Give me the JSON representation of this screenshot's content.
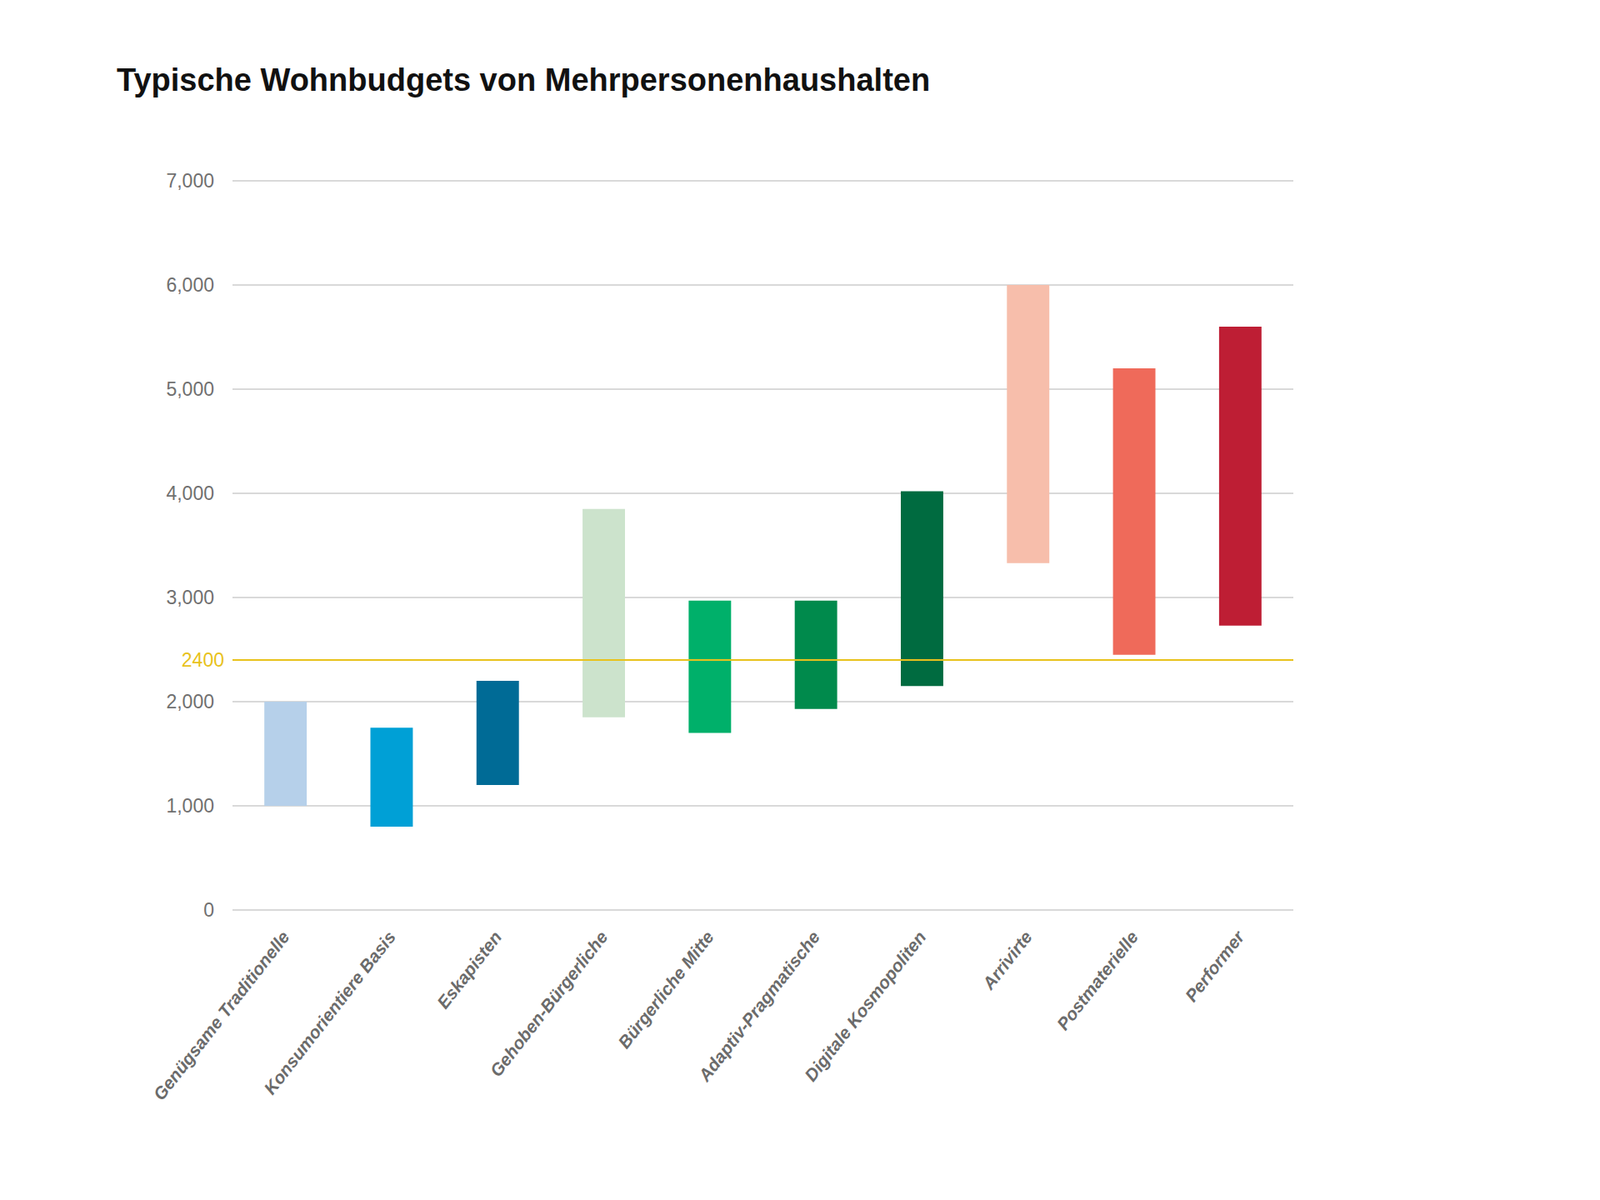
{
  "chart_data": {
    "type": "range_bar",
    "title": "Typische Wohnbudgets von Mehrpersonenhaushalten",
    "categories": [
      "Genügsame Traditionelle",
      "Konsumorientiere Basis",
      "Eskapisten",
      "Gehoben-Bürgerliche",
      "Bürgerliche Mitte",
      "Adaptiv-Pragmatische",
      "Digitale Kosmopoliten",
      "Arrivirte",
      "Postmaterielle",
      "Performer"
    ],
    "values": [
      [
        1000,
        2000
      ],
      [
        800,
        1750
      ],
      [
        1200,
        2200
      ],
      [
        1850,
        3850
      ],
      [
        1700,
        2970
      ],
      [
        1930,
        2970
      ],
      [
        2150,
        4020
      ],
      [
        3330,
        6000
      ],
      [
        2450,
        5200
      ],
      [
        2730,
        5600
      ]
    ],
    "colors": [
      "#b6d0ea",
      "#00a0d6",
      "#006b96",
      "#cce3cc",
      "#00b06a",
      "#008a4c",
      "#006b40",
      "#f7beab",
      "#ef6a5a",
      "#be1e34"
    ],
    "hline": {
      "value": 2400,
      "color": "#e8c21c"
    },
    "ylim": [
      0,
      7000
    ],
    "yticks": [
      0,
      1000,
      2000,
      3000,
      4000,
      5000,
      6000,
      7000
    ],
    "grid": true
  }
}
